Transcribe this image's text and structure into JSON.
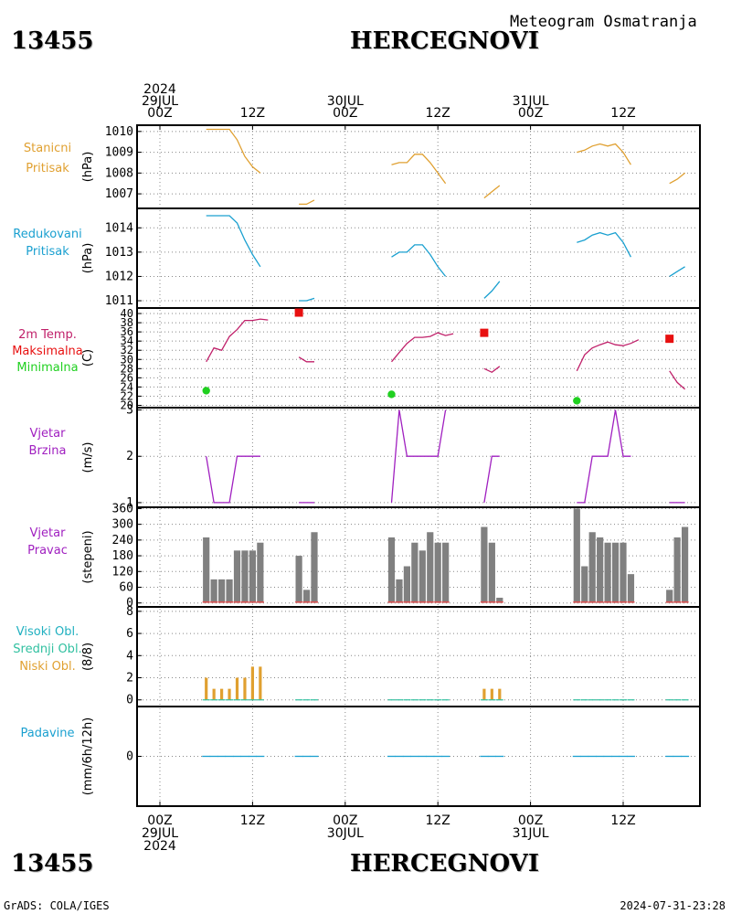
{
  "station": {
    "id": "13455",
    "name": "HERCEGNOVI",
    "product": "Meteogram Osmatranja"
  },
  "footer": {
    "left": "GrADS: COLA/IGES",
    "right": "2024-07-31-23:28"
  },
  "time_axis": {
    "top_labels": [
      {
        "hour": 0,
        "lines": [
          "2024",
          "29JUL",
          "00Z"
        ]
      },
      {
        "hour": 12,
        "lines": [
          "12Z"
        ]
      },
      {
        "hour": 24,
        "lines": [
          "30JUL",
          "00Z"
        ]
      },
      {
        "hour": 36,
        "lines": [
          "12Z"
        ]
      },
      {
        "hour": 48,
        "lines": [
          "31JUL",
          "00Z"
        ]
      },
      {
        "hour": 60,
        "lines": [
          "12Z"
        ]
      }
    ],
    "bottom_labels": [
      {
        "hour": 0,
        "lines": [
          "00Z",
          "29JUL",
          "2024"
        ]
      },
      {
        "hour": 12,
        "lines": [
          "12Z"
        ]
      },
      {
        "hour": 24,
        "lines": [
          "00Z",
          "30JUL"
        ]
      },
      {
        "hour": 36,
        "lines": [
          "12Z"
        ]
      },
      {
        "hour": 48,
        "lines": [
          "00Z",
          "31JUL"
        ]
      },
      {
        "hour": 60,
        "lines": [
          "12Z"
        ]
      }
    ]
  },
  "colors": {
    "station_pressure": "#e0a030",
    "reduced_pressure": "#1aa0d0",
    "temperature": "#c0206a",
    "max_temp": "#e81010",
    "min_temp": "#20d020",
    "wind": "#a020c0",
    "bar_gray": "#808080",
    "bar_base": "#e05050",
    "cloud_low": "#e0a030",
    "cloud_mid": "#30c0a0",
    "cloud_high": "#20b0c0",
    "precip": "#1aa0d0"
  },
  "chart_data": [
    {
      "id": "station_pressure",
      "type": "line",
      "label_lines": [
        "Stanicni",
        "Pritisak"
      ],
      "label_colors": [
        "station_pressure",
        "station_pressure"
      ],
      "ylabel": "(hPa)",
      "yticks": [
        "1007",
        "1008",
        "1009",
        "1010"
      ],
      "ytick_values": [
        1007,
        1008,
        1009,
        1010
      ],
      "ylim": [
        1006.3,
        1010.3
      ],
      "color_key": "station_pressure",
      "segments": [
        [
          [
            6,
            1010.1
          ],
          [
            7,
            1010.1
          ],
          [
            8,
            1010.1
          ],
          [
            9,
            1010.1
          ],
          [
            10,
            1009.6
          ],
          [
            11,
            1008.8
          ],
          [
            12,
            1008.3
          ],
          [
            13,
            1008.0
          ]
        ],
        [
          [
            18,
            1006.5
          ],
          [
            19,
            1006.5
          ],
          [
            20,
            1006.7
          ]
        ],
        [
          [
            30,
            1008.4
          ],
          [
            31,
            1008.5
          ],
          [
            32,
            1008.5
          ],
          [
            33,
            1008.9
          ],
          [
            34,
            1008.9
          ],
          [
            35,
            1008.5
          ],
          [
            36,
            1008.0
          ],
          [
            37,
            1007.5
          ]
        ],
        [
          [
            42,
            1006.8
          ],
          [
            43,
            1007.1
          ],
          [
            44,
            1007.4
          ]
        ],
        [
          [
            54,
            1009.0
          ],
          [
            55,
            1009.1
          ],
          [
            56,
            1009.3
          ],
          [
            57,
            1009.4
          ],
          [
            58,
            1009.3
          ],
          [
            59,
            1009.4
          ],
          [
            60,
            1009.0
          ],
          [
            61,
            1008.4
          ]
        ],
        [
          [
            66,
            1007.5
          ],
          [
            67,
            1007.7
          ],
          [
            68,
            1008.0
          ]
        ]
      ]
    },
    {
      "id": "reduced_pressure",
      "type": "line",
      "label_lines": [
        "Redukovani",
        "Pritisak"
      ],
      "label_colors": [
        "reduced_pressure",
        "reduced_pressure"
      ],
      "ylabel": "(hPa)",
      "yticks": [
        "1011",
        "1012",
        "1013",
        "1014"
      ],
      "ytick_values": [
        1011,
        1012,
        1013,
        1014
      ],
      "ylim": [
        1010.7,
        1014.8
      ],
      "color_key": "reduced_pressure",
      "segments": [
        [
          [
            6,
            1014.5
          ],
          [
            7,
            1014.5
          ],
          [
            8,
            1014.5
          ],
          [
            9,
            1014.5
          ],
          [
            10,
            1014.2
          ],
          [
            11,
            1013.5
          ],
          [
            12,
            1012.9
          ],
          [
            13,
            1012.4
          ]
        ],
        [
          [
            18,
            1011.0
          ],
          [
            19,
            1011.0
          ],
          [
            20,
            1011.1
          ]
        ],
        [
          [
            30,
            1012.8
          ],
          [
            31,
            1013.0
          ],
          [
            32,
            1013.0
          ],
          [
            33,
            1013.3
          ],
          [
            34,
            1013.3
          ],
          [
            35,
            1012.9
          ],
          [
            36,
            1012.4
          ],
          [
            37,
            1012.0
          ]
        ],
        [
          [
            42,
            1011.1
          ],
          [
            43,
            1011.4
          ],
          [
            44,
            1011.8
          ]
        ],
        [
          [
            54,
            1013.4
          ],
          [
            55,
            1013.5
          ],
          [
            56,
            1013.7
          ],
          [
            57,
            1013.8
          ],
          [
            58,
            1013.7
          ],
          [
            59,
            1013.8
          ],
          [
            60,
            1013.4
          ],
          [
            61,
            1012.8
          ]
        ],
        [
          [
            66,
            1012.0
          ],
          [
            67,
            1012.2
          ],
          [
            68,
            1012.4
          ]
        ]
      ]
    },
    {
      "id": "temperature",
      "type": "line",
      "label_lines": [
        "2m Temp.",
        "Maksimalna",
        "Minimalna"
      ],
      "label_colors": [
        "temperature",
        "max_temp",
        "min_temp"
      ],
      "ylabel": "(C)",
      "yticks": [
        "20",
        "22",
        "24",
        "26",
        "28",
        "30",
        "32",
        "34",
        "36",
        "38",
        "40"
      ],
      "ytick_values": [
        20,
        22,
        24,
        26,
        28,
        30,
        32,
        34,
        36,
        38,
        40
      ],
      "ylim": [
        19.5,
        41.2
      ],
      "color_key": "temperature",
      "segments": [
        [
          [
            6,
            29.5
          ],
          [
            7,
            32.5
          ],
          [
            8,
            32.0
          ],
          [
            9,
            35.0
          ],
          [
            10,
            36.5
          ],
          [
            11,
            38.5
          ],
          [
            12,
            38.5
          ],
          [
            13,
            38.8
          ],
          [
            14,
            38.6
          ]
        ],
        [
          [
            18,
            30.5
          ],
          [
            19,
            29.5
          ],
          [
            20,
            29.5
          ]
        ],
        [
          [
            30,
            29.5
          ],
          [
            31,
            31.5
          ],
          [
            32,
            33.5
          ],
          [
            33,
            34.8
          ],
          [
            34,
            34.8
          ],
          [
            35,
            35.0
          ],
          [
            36,
            35.8
          ],
          [
            37,
            35.2
          ],
          [
            38,
            35.6
          ]
        ],
        [
          [
            42,
            28.0
          ],
          [
            43,
            27.2
          ],
          [
            44,
            28.5
          ]
        ],
        [
          [
            54,
            27.5
          ],
          [
            55,
            31.0
          ],
          [
            56,
            32.5
          ],
          [
            57,
            33.2
          ],
          [
            58,
            33.8
          ],
          [
            59,
            33.2
          ],
          [
            60,
            33.0
          ],
          [
            61,
            33.5
          ],
          [
            62,
            34.3
          ]
        ],
        [
          [
            66,
            27.5
          ],
          [
            67,
            25.0
          ],
          [
            68,
            23.5
          ]
        ]
      ],
      "max_markers": [
        [
          18,
          40.2
        ],
        [
          42,
          35.8
        ],
        [
          66,
          34.5
        ]
      ],
      "min_markers": [
        [
          6,
          23.2
        ],
        [
          30,
          22.4
        ],
        [
          54,
          21.0
        ]
      ]
    },
    {
      "id": "wind_speed",
      "type": "line",
      "label_lines": [
        "Vjetar",
        "Brzina"
      ],
      "label_colors": [
        "wind",
        "wind"
      ],
      "ylabel": "(m/s)",
      "yticks": [
        "1",
        "2",
        "3"
      ],
      "ytick_values": [
        1,
        2,
        3
      ],
      "ylim": [
        0.9,
        3.05
      ],
      "color_key": "wind",
      "segments": [
        [
          [
            6,
            2
          ],
          [
            7,
            1
          ],
          [
            8,
            1
          ],
          [
            9,
            1
          ],
          [
            10,
            2
          ],
          [
            11,
            2
          ],
          [
            12,
            2
          ],
          [
            13,
            2
          ]
        ],
        [
          [
            18,
            1
          ],
          [
            19,
            1
          ],
          [
            20,
            1
          ]
        ],
        [
          [
            30,
            1
          ],
          [
            31,
            3
          ],
          [
            32,
            2
          ],
          [
            33,
            2
          ],
          [
            34,
            2
          ],
          [
            35,
            2
          ],
          [
            36,
            2
          ],
          [
            37,
            3
          ]
        ],
        [
          [
            42,
            1
          ],
          [
            43,
            2
          ],
          [
            44,
            2
          ]
        ],
        [
          [
            54,
            1
          ],
          [
            55,
            1
          ],
          [
            56,
            2
          ],
          [
            57,
            2
          ],
          [
            58,
            2
          ],
          [
            59,
            3
          ],
          [
            60,
            2
          ],
          [
            61,
            2
          ]
        ],
        [
          [
            66,
            1
          ],
          [
            67,
            1
          ],
          [
            68,
            1
          ]
        ]
      ]
    },
    {
      "id": "wind_direction",
      "type": "bar",
      "label_lines": [
        "Vjetar",
        "Pravac"
      ],
      "label_colors": [
        "wind",
        "wind"
      ],
      "ylabel": "(stepeni)",
      "yticks": [
        "0",
        "60",
        "120",
        "180",
        "240",
        "300",
        "360"
      ],
      "ytick_values": [
        0,
        60,
        120,
        180,
        240,
        300,
        360
      ],
      "ylim": [
        -15,
        365
      ],
      "color_key": "bar_gray",
      "x": [
        6,
        7,
        8,
        9,
        10,
        11,
        12,
        13,
        18,
        19,
        20,
        30,
        31,
        32,
        33,
        34,
        35,
        36,
        37,
        42,
        43,
        44,
        54,
        55,
        56,
        57,
        58,
        59,
        60,
        61,
        66,
        67,
        68
      ],
      "values": [
        250,
        90,
        90,
        90,
        200,
        200,
        200,
        230,
        180,
        50,
        270,
        250,
        90,
        140,
        230,
        200,
        270,
        230,
        230,
        290,
        230,
        20,
        360,
        140,
        270,
        250,
        230,
        230,
        230,
        110,
        50,
        250,
        290
      ]
    },
    {
      "id": "clouds",
      "type": "bar",
      "label_lines": [
        "Visoki Obl.",
        "Srednji Obl.",
        "Niski Obl."
      ],
      "label_colors": [
        "cloud_high",
        "cloud_mid",
        "cloud_low"
      ],
      "ylabel": "(8/8)",
      "yticks": [
        "0",
        "2",
        "4",
        "6",
        "8"
      ],
      "ytick_values": [
        0,
        2,
        4,
        6,
        8
      ],
      "ylim": [
        -0.6,
        8.4
      ],
      "color_key": "cloud_low",
      "x": [
        6,
        7,
        8,
        9,
        10,
        11,
        12,
        13,
        18,
        19,
        20,
        30,
        31,
        32,
        33,
        34,
        35,
        36,
        37,
        42,
        43,
        44,
        54,
        55,
        56,
        57,
        58,
        59,
        60,
        61,
        66,
        67,
        68
      ],
      "values": [
        2,
        1,
        1,
        1,
        2,
        2,
        3,
        3,
        0,
        0,
        0,
        0,
        0,
        0,
        0,
        0,
        0,
        0,
        0,
        1,
        1,
        1,
        0,
        0,
        0,
        0,
        0,
        0,
        0,
        0,
        0,
        0,
        0
      ]
    },
    {
      "id": "precip",
      "type": "bar",
      "label_lines": [
        "Padavine"
      ],
      "label_colors": [
        "precip"
      ],
      "ylabel": "(mm/6h/12h)",
      "yticks": [
        "0"
      ],
      "ytick_values": [
        0
      ],
      "ylim": [
        -5,
        5
      ],
      "color_key": "precip",
      "x": [
        6,
        7,
        8,
        9,
        10,
        11,
        12,
        13,
        18,
        19,
        20,
        30,
        31,
        32,
        33,
        34,
        35,
        36,
        37,
        42,
        43,
        44,
        54,
        55,
        56,
        57,
        58,
        59,
        60,
        61,
        66,
        67,
        68
      ],
      "values": [
        0,
        0,
        0,
        0,
        0,
        0,
        0,
        0,
        0,
        0,
        0,
        0,
        0,
        0,
        0,
        0,
        0,
        0,
        0,
        0,
        0,
        0,
        0,
        0,
        0,
        0,
        0,
        0,
        0,
        0,
        0,
        0,
        0
      ]
    }
  ]
}
